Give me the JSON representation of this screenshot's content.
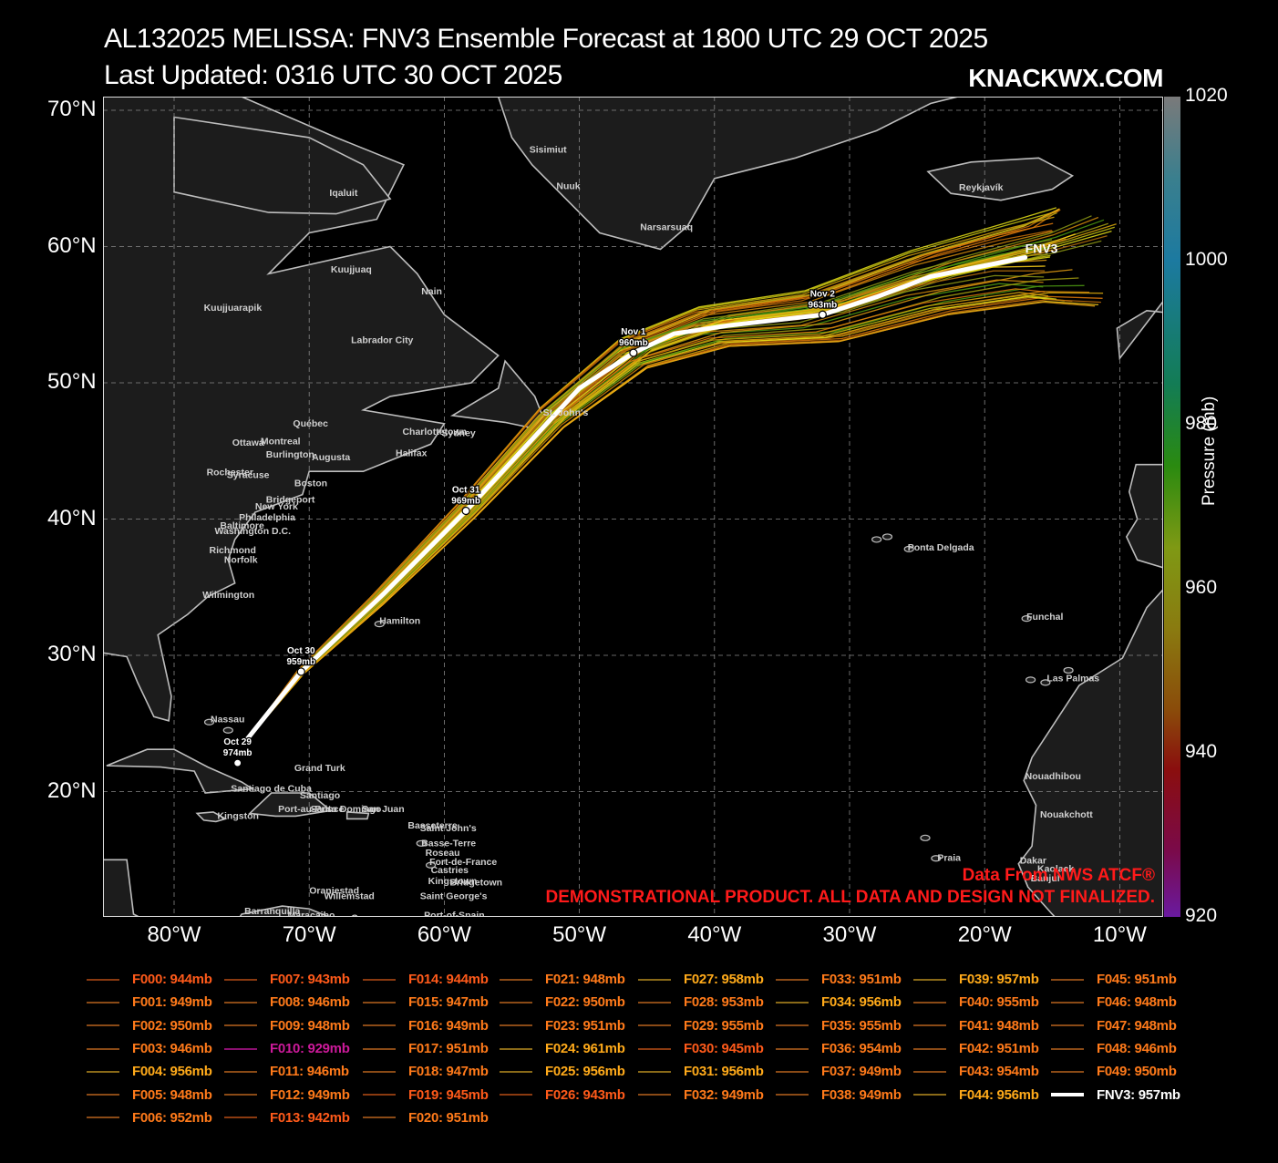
{
  "header": {
    "title_line1": "AL132025 MELISSA: FNV3 Ensemble Forecast at 1800 UTC 29 OCT 2025",
    "title_line2": "Last Updated: 0316 UTC 30 OCT 2025",
    "brand": "KNACKWX.COM"
  },
  "axes": {
    "lat_labels": [
      "70°N",
      "60°N",
      "50°N",
      "40°N",
      "30°N",
      "20°N"
    ],
    "lon_labels": [
      "80°W",
      "70°W",
      "60°W",
      "50°W",
      "40°W",
      "30°W",
      "20°W",
      "10°W"
    ]
  },
  "colorbar": {
    "label": "Pressure (mb)",
    "ticks": [
      "1020",
      "1000",
      "980",
      "960",
      "940",
      "920"
    ]
  },
  "track_labels": [
    {
      "date": "Oct 29",
      "pressure": "974mb",
      "lon": -75.3,
      "lat": 22.1
    },
    {
      "date": "Oct 30",
      "pressure": "959mb",
      "lon": -70.6,
      "lat": 28.8
    },
    {
      "date": "Oct 31",
      "pressure": "969mb",
      "lon": -58.4,
      "lat": 40.6
    },
    {
      "date": "Nov  1",
      "pressure": "960mb",
      "lon": -46.0,
      "lat": 52.2
    },
    {
      "date": "Nov  2",
      "pressure": "963mb",
      "lon": -32.0,
      "lat": 55.0
    }
  ],
  "fnv3_label": "FNV3",
  "places": [
    {
      "name": "Sisimiut",
      "lon": -53.7,
      "lat": 66.9
    },
    {
      "name": "Nuuk",
      "lon": -51.7,
      "lat": 64.2
    },
    {
      "name": "Narsarsuaq",
      "lon": -45.5,
      "lat": 61.2
    },
    {
      "name": "Reykjavík",
      "lon": -21.9,
      "lat": 64.1
    },
    {
      "name": "Iqaluit",
      "lon": -68.5,
      "lat": 63.7
    },
    {
      "name": "Kuujjuaq",
      "lon": -68.4,
      "lat": 58.1
    },
    {
      "name": "Nain",
      "lon": -61.7,
      "lat": 56.5
    },
    {
      "name": "Kuujjuarapik",
      "lon": -77.8,
      "lat": 55.3
    },
    {
      "name": "Labrador City",
      "lon": -66.9,
      "lat": 52.9
    },
    {
      "name": "St. John's",
      "lon": -52.7,
      "lat": 47.6
    },
    {
      "name": "Québec",
      "lon": -71.2,
      "lat": 46.8
    },
    {
      "name": "Charlottetown",
      "lon": -63.1,
      "lat": 46.2
    },
    {
      "name": "Sydney",
      "lon": -60.2,
      "lat": 46.1
    },
    {
      "name": "Ottawa",
      "lon": -75.7,
      "lat": 45.4
    },
    {
      "name": "Montreal",
      "lon": -73.6,
      "lat": 45.5
    },
    {
      "name": "Halifax",
      "lon": -63.6,
      "lat": 44.6
    },
    {
      "name": "Burlington",
      "lon": -73.2,
      "lat": 44.5
    },
    {
      "name": "Augusta",
      "lon": -69.8,
      "lat": 44.3
    },
    {
      "name": "Rochester",
      "lon": -77.6,
      "lat": 43.2
    },
    {
      "name": "Syracuse",
      "lon": -76.1,
      "lat": 43.0
    },
    {
      "name": "Boston",
      "lon": -71.1,
      "lat": 42.4
    },
    {
      "name": "Bridgeport",
      "lon": -73.2,
      "lat": 41.2
    },
    {
      "name": "New York",
      "lon": -74.0,
      "lat": 40.7
    },
    {
      "name": "Philadelphia",
      "lon": -75.2,
      "lat": 39.9
    },
    {
      "name": "Baltimore",
      "lon": -76.6,
      "lat": 39.3
    },
    {
      "name": "Washington D.C.",
      "lon": -77.0,
      "lat": 38.9
    },
    {
      "name": "Richmond",
      "lon": -77.4,
      "lat": 37.5
    },
    {
      "name": "Norfolk",
      "lon": -76.3,
      "lat": 36.8
    },
    {
      "name": "Wilmington",
      "lon": -77.9,
      "lat": 34.2
    },
    {
      "name": "Hamilton",
      "lon": -64.8,
      "lat": 32.3
    },
    {
      "name": "Ponta Delgada",
      "lon": -25.7,
      "lat": 37.7
    },
    {
      "name": "Funchal",
      "lon": -16.9,
      "lat": 32.6
    },
    {
      "name": "Las Palmas",
      "lon": -15.4,
      "lat": 28.1
    },
    {
      "name": "Nassau",
      "lon": -77.3,
      "lat": 25.1
    },
    {
      "name": "Grand Turk",
      "lon": -71.1,
      "lat": 21.5
    },
    {
      "name": "Santiago de Cuba",
      "lon": -75.8,
      "lat": 20.0
    },
    {
      "name": "Santiago",
      "lon": -70.7,
      "lat": 19.5
    },
    {
      "name": "Port-au-Prince",
      "lon": -72.3,
      "lat": 18.5
    },
    {
      "name": "Santo Domingo",
      "lon": -69.9,
      "lat": 18.5
    },
    {
      "name": "San Juan",
      "lon": -66.1,
      "lat": 18.5
    },
    {
      "name": "Kingston",
      "lon": -76.8,
      "lat": 18.0
    },
    {
      "name": "Basseterre",
      "lon": -62.7,
      "lat": 17.3
    },
    {
      "name": "Saint John's",
      "lon": -61.8,
      "lat": 17.1
    },
    {
      "name": "Basse-Terre",
      "lon": -61.7,
      "lat": 16.0
    },
    {
      "name": "Roseau",
      "lon": -61.4,
      "lat": 15.3
    },
    {
      "name": "Fort-de-France",
      "lon": -61.1,
      "lat": 14.6
    },
    {
      "name": "Castries",
      "lon": -61.0,
      "lat": 14.0
    },
    {
      "name": "Kingstown",
      "lon": -61.2,
      "lat": 13.2
    },
    {
      "name": "Bridgetown",
      "lon": -59.6,
      "lat": 13.1
    },
    {
      "name": "Saint George's",
      "lon": -61.8,
      "lat": 12.1
    },
    {
      "name": "Oranjestad",
      "lon": -70.0,
      "lat": 12.5
    },
    {
      "name": "Willemstad",
      "lon": -68.9,
      "lat": 12.1
    },
    {
      "name": "Barranquilla",
      "lon": -74.8,
      "lat": 11.0
    },
    {
      "name": "Maracaibo",
      "lon": -71.6,
      "lat": 10.7
    },
    {
      "name": "Caracas",
      "lon": -66.9,
      "lat": 10.5
    },
    {
      "name": "Port-of-Spain",
      "lon": -61.5,
      "lat": 10.7
    },
    {
      "name": "Nouadhibou",
      "lon": -17.0,
      "lat": 20.9
    },
    {
      "name": "Nouakchott",
      "lon": -15.9,
      "lat": 18.1
    },
    {
      "name": "Praia",
      "lon": -23.5,
      "lat": 14.9
    },
    {
      "name": "Dakar",
      "lon": -17.4,
      "lat": 14.7
    },
    {
      "name": "Kaolack",
      "lon": -16.1,
      "lat": 14.1
    },
    {
      "name": "Banjul",
      "lon": -16.6,
      "lat": 13.4
    }
  ],
  "legend": [
    [
      "F000: 944mb",
      "F001: 949mb",
      "F002: 950mb",
      "F003: 946mb",
      "F004: 956mb",
      "F005: 948mb",
      "F006: 952mb"
    ],
    [
      "F007: 943mb",
      "F008: 946mb",
      "F009: 948mb",
      "F010: 929mb",
      "F011: 946mb",
      "F012: 949mb",
      "F013: 942mb"
    ],
    [
      "F014: 944mb",
      "F015: 947mb",
      "F016: 949mb",
      "F017: 951mb",
      "F018: 947mb",
      "F019: 945mb",
      "F020: 951mb"
    ],
    [
      "F021: 948mb",
      "F022: 950mb",
      "F023: 951mb",
      "F024: 961mb",
      "F025: 956mb",
      "F026: 943mb"
    ],
    [
      "F027: 958mb",
      "F028: 953mb",
      "F029: 955mb",
      "F030: 945mb",
      "F031: 956mb",
      "F032: 949mb"
    ],
    [
      "F033: 951mb",
      "F034: 956mb",
      "F035: 955mb",
      "F036: 954mb",
      "F037: 949mb",
      "F038: 949mb"
    ],
    [
      "F039: 957mb",
      "F040: 955mb",
      "F041: 948mb",
      "F042: 951mb",
      "F043: 954mb",
      "F044: 956mb"
    ],
    [
      "F045: 951mb",
      "F046: 948mb",
      "F047: 948mb",
      "F048: 946mb",
      "F049: 950mb",
      "FNV3: 957mb"
    ]
  ],
  "disclaimer": {
    "line1": "Data From NWS ATCF®",
    "line2": "DEMONSTRATIONAL PRODUCT. ALL DATA AND DESIGN NOT FINALIZED."
  },
  "colors": {
    "fnv3": "#ffffff",
    "land": "#1c1c1c",
    "coast": "#bdbdbd",
    "grid": "#888888"
  }
}
